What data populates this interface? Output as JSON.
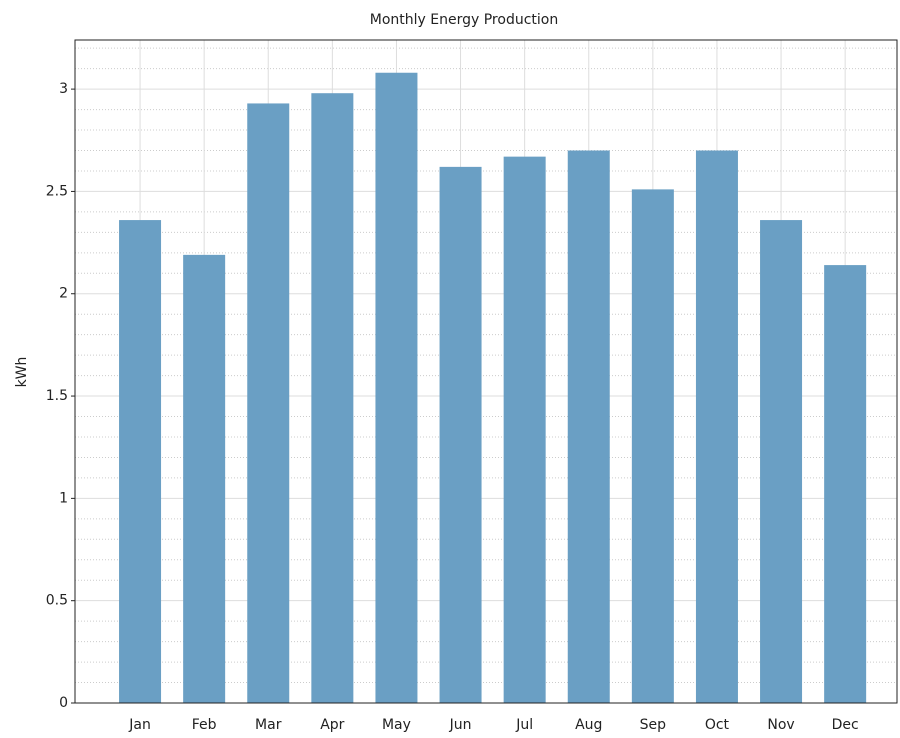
{
  "chart_data": {
    "type": "bar",
    "title": "Monthly Energy Production",
    "y_label": "kWh",
    "categories": [
      "Jan",
      "Feb",
      "Mar",
      "Apr",
      "May",
      "Jun",
      "Jul",
      "Aug",
      "Sep",
      "Oct",
      "Nov",
      "Dec"
    ],
    "values": [
      2.36,
      2.19,
      2.93,
      2.98,
      3.08,
      2.62,
      2.67,
      2.7,
      2.51,
      2.7,
      2.36,
      2.14
    ],
    "color": "#6a9fc4",
    "ylim": [
      0,
      3.24
    ],
    "yticks": [
      0,
      0.5,
      1,
      1.5,
      2,
      2.5,
      3
    ],
    "grid": true
  }
}
